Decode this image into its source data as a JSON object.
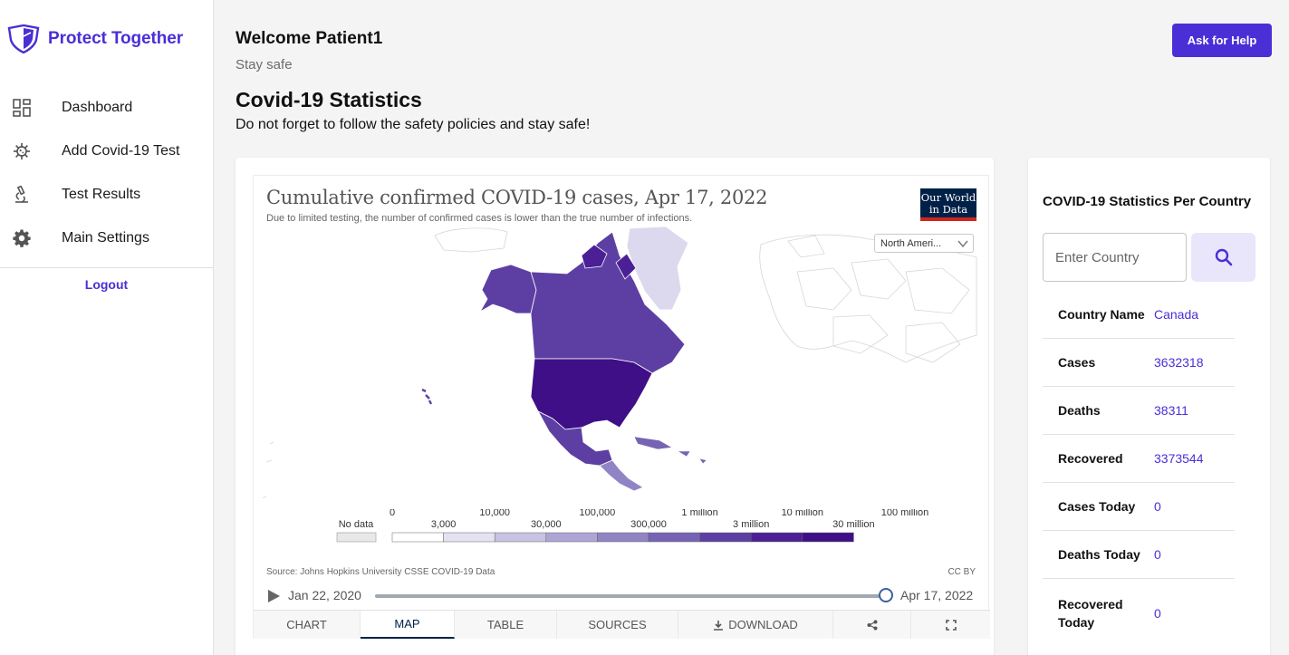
{
  "brand": {
    "name": "Protect Together"
  },
  "sidebar": {
    "items": [
      {
        "label": "Dashboard",
        "icon": "dashboard-icon"
      },
      {
        "label": "Add Covid-19 Test",
        "icon": "virus-icon"
      },
      {
        "label": "Test Results",
        "icon": "microscope-icon"
      },
      {
        "label": "Main Settings",
        "icon": "gear-icon"
      }
    ],
    "logout": "Logout"
  },
  "header": {
    "welcome": "Welcome Patient1",
    "subtitle": "Stay safe",
    "help_button": "Ask for Help"
  },
  "main": {
    "title": "Covid-19 Statistics",
    "subtitle": "Do not forget to follow the safety policies and stay safe!"
  },
  "owid": {
    "title": "Cumulative confirmed COVID-19 cases, Apr 17, 2022",
    "subtitle": "Due to limited testing, the number of confirmed cases is lower than the true number of infections.",
    "logo_line1": "Our World",
    "logo_line2": "in Data",
    "region": "North Ameri...",
    "legend": {
      "no_data": "No data",
      "top_labels": [
        "0",
        "10,000",
        "100,000",
        "1 million",
        "10 million",
        "100 million"
      ],
      "bottom_labels": [
        "3,000",
        "30,000",
        "300,000",
        "3 million",
        "30 million"
      ],
      "colors": [
        "#ffffff",
        "#e4e1f2",
        "#c8c2e3",
        "#aea5d4",
        "#9184c4",
        "#7663b4",
        "#5d3fa3",
        "#4b1f96",
        "#3f0f87"
      ]
    },
    "source": "Source: Johns Hopkins University CSSE COVID-19 Data",
    "license": "CC BY",
    "timeline": {
      "start": "Jan 22, 2020",
      "end": "Apr 17, 2022",
      "position": 1.0
    },
    "tabs": [
      {
        "label": "CHART",
        "active": false
      },
      {
        "label": "MAP",
        "active": true
      },
      {
        "label": "TABLE",
        "active": false
      },
      {
        "label": "SOURCES",
        "active": false
      },
      {
        "label": "DOWNLOAD",
        "active": false,
        "icon": "download-icon"
      },
      {
        "label": "",
        "active": false,
        "icon": "share-icon"
      },
      {
        "label": "",
        "active": false,
        "icon": "fullscreen-icon"
      }
    ]
  },
  "stats": {
    "title": "COVID-19 Statistics Per Country",
    "search_placeholder": "Enter Country",
    "rows": [
      {
        "key": "Country Name",
        "value": "Canada"
      },
      {
        "key": "Cases",
        "value": "3632318"
      },
      {
        "key": "Deaths",
        "value": "38311"
      },
      {
        "key": "Recovered",
        "value": "3373544"
      },
      {
        "key": "Cases Today",
        "value": "0"
      },
      {
        "key": "Deaths Today",
        "value": "0"
      },
      {
        "key": "Recovered Today",
        "value": "0"
      }
    ]
  }
}
